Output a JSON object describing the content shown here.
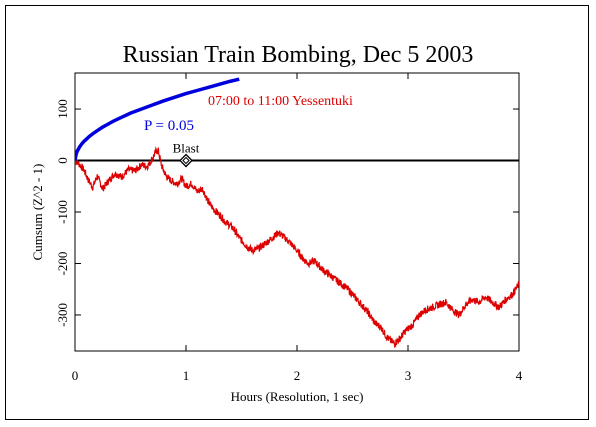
{
  "chart_data": {
    "type": "line",
    "title": "Russian Train Bombing, Dec 5 2003",
    "xlabel": "Hours (Resolution, 1 sec)",
    "ylabel": "Cumsum (Z^2 - 1)",
    "xlim": [
      0,
      4
    ],
    "ylim": [
      -370,
      170
    ],
    "x_ticks": [
      0,
      1,
      2,
      3,
      4
    ],
    "y_ticks": [
      -300,
      -200,
      -100,
      0,
      100
    ],
    "x_tick_labels": [
      "0",
      "1",
      "2",
      "3",
      "4"
    ],
    "y_tick_labels": [
      "-300",
      "-200",
      "-100",
      "0",
      "100"
    ],
    "grid": false,
    "series": [
      {
        "name": "07:00 to 11:00 Yessentuki",
        "color": "#dd0000",
        "x": [
          0,
          0.03,
          0.08,
          0.12,
          0.16,
          0.2,
          0.25,
          0.3,
          0.36,
          0.42,
          0.48,
          0.54,
          0.6,
          0.65,
          0.7,
          0.73,
          0.75,
          0.78,
          0.82,
          0.87,
          0.92,
          0.96,
          1.0,
          1.05,
          1.1,
          1.15,
          1.2,
          1.25,
          1.3,
          1.36,
          1.42,
          1.48,
          1.54,
          1.6,
          1.66,
          1.72,
          1.78,
          1.83,
          1.88,
          1.94,
          2.0,
          2.05,
          2.1,
          2.16,
          2.22,
          2.28,
          2.34,
          2.4,
          2.46,
          2.52,
          2.58,
          2.64,
          2.7,
          2.76,
          2.8,
          2.84,
          2.88,
          2.93,
          2.98,
          3.04,
          3.1,
          3.16,
          3.22,
          3.28,
          3.34,
          3.4,
          3.46,
          3.52,
          3.58,
          3.64,
          3.7,
          3.76,
          3.82,
          3.88,
          3.94,
          4.0
        ],
        "y": [
          0,
          -5,
          -18,
          -38,
          -52,
          -30,
          -55,
          -40,
          -25,
          -32,
          -18,
          -20,
          -8,
          -12,
          5,
          18,
          20,
          -10,
          -30,
          -40,
          -45,
          -35,
          -50,
          -45,
          -60,
          -55,
          -80,
          -95,
          -105,
          -120,
          -130,
          -150,
          -165,
          -175,
          -170,
          -160,
          -150,
          -140,
          -148,
          -160,
          -175,
          -190,
          -200,
          -195,
          -210,
          -220,
          -230,
          -240,
          -250,
          -265,
          -280,
          -295,
          -315,
          -325,
          -340,
          -350,
          -355,
          -345,
          -330,
          -320,
          -300,
          -290,
          -285,
          -280,
          -275,
          -290,
          -300,
          -280,
          -270,
          -275,
          -265,
          -275,
          -285,
          -270,
          -260,
          -240
        ]
      },
      {
        "name": "P = 0.05",
        "color": "#0000dd",
        "x": [
          0,
          0.01,
          0.02,
          0.04,
          0.06,
          0.08,
          0.1,
          0.13,
          0.16,
          0.2,
          0.25,
          0.3,
          0.35,
          0.4,
          0.5,
          0.6,
          0.7,
          0.8,
          0.9,
          1.0,
          1.1,
          1.2,
          1.3,
          1.4,
          1.48
        ],
        "y": [
          0,
          12,
          18,
          26,
          32,
          37,
          41,
          47,
          52,
          58,
          65,
          71,
          77,
          82,
          92,
          100,
          108,
          116,
          123,
          130,
          136,
          142,
          148,
          154,
          158
        ]
      }
    ],
    "annotations": [
      {
        "text": "Blast",
        "x": 1.0,
        "y": 0,
        "marker": "diamond"
      }
    ],
    "reference_line": {
      "y": 0
    }
  }
}
